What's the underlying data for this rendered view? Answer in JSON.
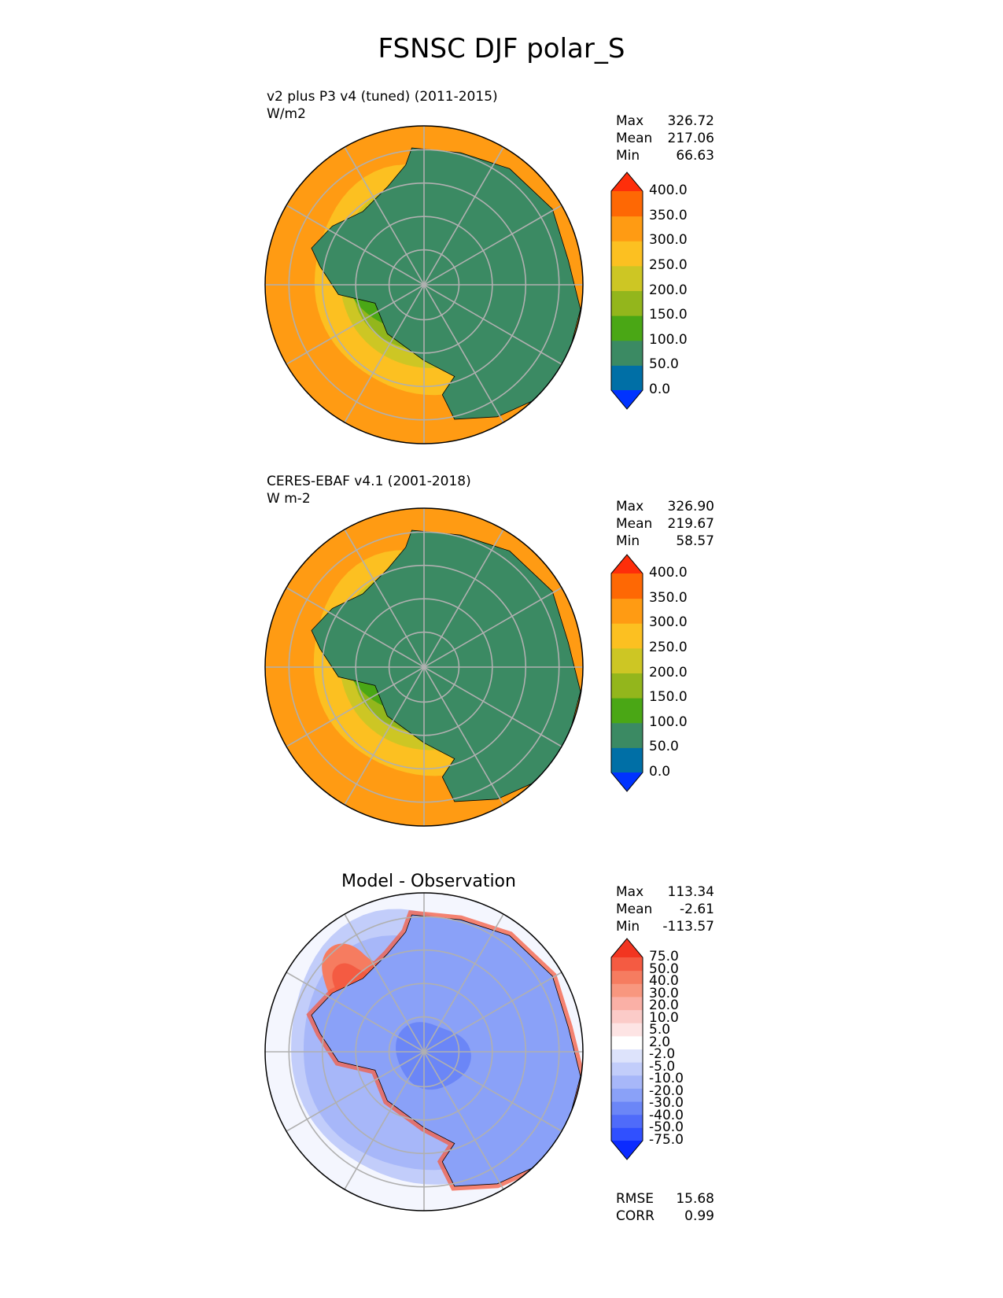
{
  "main_title": "FSNSC DJF polar_S",
  "colors": {
    "abs_levels": [
      "#0033ff",
      "#006fa6",
      "#3b8a63",
      "#4aa715",
      "#93b61c",
      "#cdc624",
      "#fcc021",
      "#ff9b13",
      "#fe6804",
      "#fe2e0a"
    ],
    "diff_levels": [
      "#0b2bff",
      "#3050ff",
      "#4f6bfa",
      "#6b86f7",
      "#8aa1f8",
      "#a7b7f9",
      "#c2cdfa",
      "#dde3fb",
      "#ffffff",
      "#fde4e4",
      "#fbcbc8",
      "#fab0a6",
      "#f8977f",
      "#f67c60",
      "#f45b42",
      "#f23520"
    ],
    "land": "#3b8a63",
    "grid": "#b0b0b0"
  },
  "panels": [
    {
      "title_line1": "v2 plus P3 v4 (tuned) (2011-2015)",
      "title_line2": "W/m2",
      "stats": [
        {
          "label": "Max",
          "value": "326.72"
        },
        {
          "label": "Mean",
          "value": "217.06"
        },
        {
          "label": "Min",
          "value": "66.63"
        }
      ]
    },
    {
      "title_line1": "CERES-EBAF v4.1 (2001-2018)",
      "title_line2": "W m-2",
      "stats": [
        {
          "label": "Max",
          "value": "326.90"
        },
        {
          "label": "Mean",
          "value": "219.67"
        },
        {
          "label": "Min",
          "value": "58.57"
        }
      ]
    },
    {
      "title_center": "Model - Observation",
      "stats": [
        {
          "label": "Max",
          "value": "113.34"
        },
        {
          "label": "Mean",
          "value": "-2.61"
        },
        {
          "label": "Min",
          "value": "-113.57"
        }
      ],
      "extra_stats": [
        {
          "label": "RMSE",
          "value": "15.68"
        },
        {
          "label": "CORR",
          "value": "0.99"
        }
      ]
    }
  ],
  "chart_data": [
    {
      "type": "heatmap",
      "projection": "south polar stereographic",
      "title": "v2 plus P3 v4 (tuned) (2011-2015)",
      "units": "W/m2",
      "colorbar_ticks": [
        "0.0",
        "50.0",
        "100.0",
        "150.0",
        "200.0",
        "250.0",
        "300.0",
        "350.0",
        "400.0"
      ],
      "colorbar_extend": "both",
      "max": 326.72,
      "mean": 217.06,
      "min": 66.63
    },
    {
      "type": "heatmap",
      "projection": "south polar stereographic",
      "title": "CERES-EBAF v4.1 (2001-2018)",
      "units": "W m-2",
      "colorbar_ticks": [
        "0.0",
        "50.0",
        "100.0",
        "150.0",
        "200.0",
        "250.0",
        "300.0",
        "350.0",
        "400.0"
      ],
      "colorbar_extend": "both",
      "max": 326.9,
      "mean": 219.67,
      "min": 58.57
    },
    {
      "type": "heatmap",
      "projection": "south polar stereographic",
      "title": "Model - Observation",
      "colorbar_ticks": [
        "-75.0",
        "-50.0",
        "-40.0",
        "-30.0",
        "-20.0",
        "-10.0",
        "-5.0",
        "-2.0",
        "2.0",
        "5.0",
        "10.0",
        "20.0",
        "30.0",
        "40.0",
        "50.0",
        "75.0"
      ],
      "colorbar_extend": "both",
      "max": 113.34,
      "mean": -2.61,
      "min": -113.57,
      "rmse": 15.68,
      "corr": 0.99
    }
  ]
}
